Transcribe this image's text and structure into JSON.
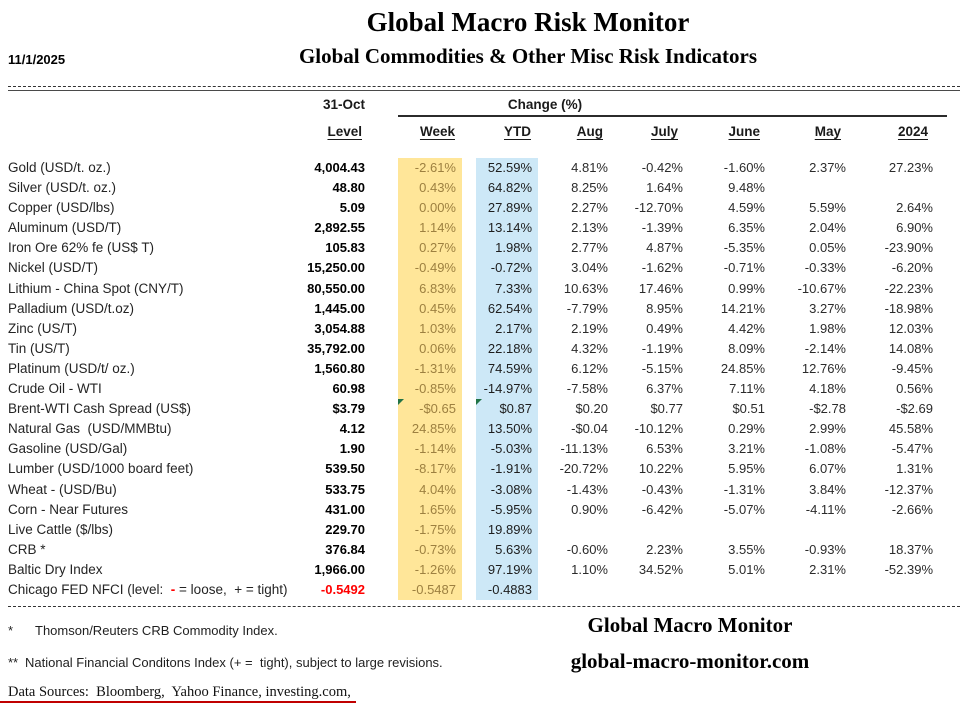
{
  "meta": {
    "report_date": "11/1/2025"
  },
  "header": {
    "title": "Global Macro Risk Monitor",
    "subtitle": "Global Commodities & Other Misc Risk Indicators"
  },
  "table": {
    "date_header": "31-Oct",
    "level_header": "Level",
    "change_header": "Change (%)",
    "periods": [
      "Week",
      "YTD",
      "Aug",
      "July",
      "June",
      "May",
      "2024"
    ],
    "rows": [
      {
        "label": "Gold (USD/t. oz.)",
        "level": "4,004.43",
        "week": "-2.61%",
        "ytd": "52.59%",
        "aug": "4.81%",
        "july": "-0.42%",
        "june": "-1.60%",
        "may": "2.37%",
        "y2024": "27.23%"
      },
      {
        "label": "Silver (USD/t. oz.)",
        "level": "48.80",
        "week": "0.43%",
        "ytd": "64.82%",
        "aug": "8.25%",
        "july": "1.64%",
        "june": "9.48%",
        "may": "",
        "y2024": ""
      },
      {
        "label": "Copper (USD/lbs)",
        "level": "5.09",
        "week": "0.00%",
        "ytd": "27.89%",
        "aug": "2.27%",
        "july": "-12.70%",
        "june": "4.59%",
        "may": "5.59%",
        "y2024": "2.64%"
      },
      {
        "label": "Aluminum (USD/T)",
        "level": "2,892.55",
        "week": "1.14%",
        "ytd": "13.14%",
        "aug": "2.13%",
        "july": "-1.39%",
        "june": "6.35%",
        "may": "2.04%",
        "y2024": "6.90%"
      },
      {
        "label": "Iron Ore 62% fe (US$ T)",
        "level": "105.83",
        "week": "0.27%",
        "ytd": "1.98%",
        "aug": "2.77%",
        "july": "4.87%",
        "june": "-5.35%",
        "may": "0.05%",
        "y2024": "-23.90%"
      },
      {
        "label": "Nickel (USD/T)",
        "level": "15,250.00",
        "week": "-0.49%",
        "ytd": "-0.72%",
        "aug": "3.04%",
        "july": "-1.62%",
        "june": "-0.71%",
        "may": "-0.33%",
        "y2024": "-6.20%"
      },
      {
        "label": "Lithium - China Spot (CNY/T)",
        "level": "80,550.00",
        "week": "6.83%",
        "ytd": "7.33%",
        "aug": "10.63%",
        "july": "17.46%",
        "june": "0.99%",
        "may": "-10.67%",
        "y2024": "-22.23%"
      },
      {
        "label": "Palladium (USD/t.oz)",
        "level": "1,445.00",
        "week": "0.45%",
        "ytd": "62.54%",
        "aug": "-7.79%",
        "july": "8.95%",
        "june": "14.21%",
        "may": "3.27%",
        "y2024": "-18.98%"
      },
      {
        "label": "Zinc (US/T)",
        "level": "3,054.88",
        "week": "1.03%",
        "ytd": "2.17%",
        "aug": "2.19%",
        "july": "0.49%",
        "june": "4.42%",
        "may": "1.98%",
        "y2024": "12.03%"
      },
      {
        "label": "Tin (US/T)",
        "level": "35,792.00",
        "week": "0.06%",
        "ytd": "22.18%",
        "aug": "4.32%",
        "july": "-1.19%",
        "june": "8.09%",
        "may": "-2.14%",
        "y2024": "14.08%"
      },
      {
        "label": "Platinum (USD/t/ oz.)",
        "level": "1,560.80",
        "week": "-1.31%",
        "ytd": "74.59%",
        "aug": "6.12%",
        "july": "-5.15%",
        "june": "24.85%",
        "may": "12.76%",
        "y2024": "-9.45%"
      },
      {
        "label": "Crude Oil - WTI",
        "level": "60.98",
        "week": "-0.85%",
        "ytd": "-14.97%",
        "aug": "-7.58%",
        "july": "6.37%",
        "june": "7.11%",
        "may": "4.18%",
        "y2024": "0.56%"
      },
      {
        "label": "Brent-WTI Cash Spread (US$)",
        "level": "$3.79",
        "week": "-$0.65",
        "ytd": "$0.87",
        "aug": "$0.20",
        "july": "$0.77",
        "june": "$0.51",
        "may": "-$2.78",
        "y2024": "-$2.69",
        "flag_week": true,
        "flag_ytd": true
      },
      {
        "label": "Natural Gas  (USD/MMBtu)",
        "level": "4.12",
        "week": "24.85%",
        "ytd": "13.50%",
        "aug": "-$0.04",
        "july": "-10.12%",
        "june": "0.29%",
        "may": "2.99%",
        "y2024": "45.58%"
      },
      {
        "label": "Gasoline (USD/Gal)",
        "level": "1.90",
        "week": "-1.14%",
        "ytd": "-5.03%",
        "aug": "-11.13%",
        "july": "6.53%",
        "june": "3.21%",
        "may": "-1.08%",
        "y2024": "-5.47%"
      },
      {
        "label": "Lumber (USD/1000 board feet)",
        "level": "539.50",
        "week": "-8.17%",
        "ytd": "-1.91%",
        "aug": "-20.72%",
        "july": "10.22%",
        "june": "5.95%",
        "may": "6.07%",
        "y2024": "1.31%"
      },
      {
        "label": "Wheat - (USD/Bu)",
        "level": "533.75",
        "week": "4.04%",
        "ytd": "-3.08%",
        "aug": "-1.43%",
        "july": "-0.43%",
        "june": "-1.31%",
        "may": "3.84%",
        "y2024": "-12.37%"
      },
      {
        "label": "Corn - Near Futures",
        "level": "431.00",
        "week": "1.65%",
        "ytd": "-5.95%",
        "aug": "0.90%",
        "july": "-6.42%",
        "june": "-5.07%",
        "may": "-4.11%",
        "y2024": "-2.66%"
      },
      {
        "label": "Live Cattle ($/lbs)",
        "level": "229.70",
        "week": "-1.75%",
        "ytd": "19.89%",
        "aug": "",
        "july": "",
        "june": "",
        "may": "",
        "y2024": ""
      },
      {
        "label": "CRB *",
        "level": "376.84",
        "week": "-0.73%",
        "ytd": "5.63%",
        "aug": "-0.60%",
        "july": "2.23%",
        "june": "3.55%",
        "may": "-0.93%",
        "y2024": "18.37%"
      },
      {
        "label": "Baltic Dry Index",
        "level": "1,966.00",
        "week": "-1.26%",
        "ytd": "97.19%",
        "aug": "1.10%",
        "july": "34.52%",
        "june": "5.01%",
        "may": "2.31%",
        "y2024": "-52.39%"
      },
      {
        "label_parts": [
          "Chicago FED NFCI (level:  ",
          "-",
          " = loose,  + = tight)"
        ],
        "level": "-0.5492",
        "level_red": true,
        "week": "-0.5487",
        "ytd": "-0.4883",
        "aug": "",
        "july": "",
        "june": "",
        "may": "",
        "y2024": ""
      }
    ]
  },
  "footer": {
    "footnotes": [
      {
        "marker": "*",
        "text": "Thomson/Reuters CRB Commodity Index."
      },
      {
        "marker": "**",
        "text": "National Financial Conditons Index (+ =  tight), subject to large revisions."
      }
    ],
    "data_sources": "Data Sources:  Bloomberg,  Yahoo Finance, investing.com,",
    "brand_name": "Global Macro Monitor",
    "brand_url": "global-macro-monitor.com"
  },
  "colors": {
    "week_column_bg": "#FFE699",
    "week_column_text": "#9d8040",
    "ytd_column_bg": "#CDE8F7",
    "nfci_level_text": "#FF0000",
    "corner_flag": "#217346",
    "bottom_line": "#C00000"
  }
}
